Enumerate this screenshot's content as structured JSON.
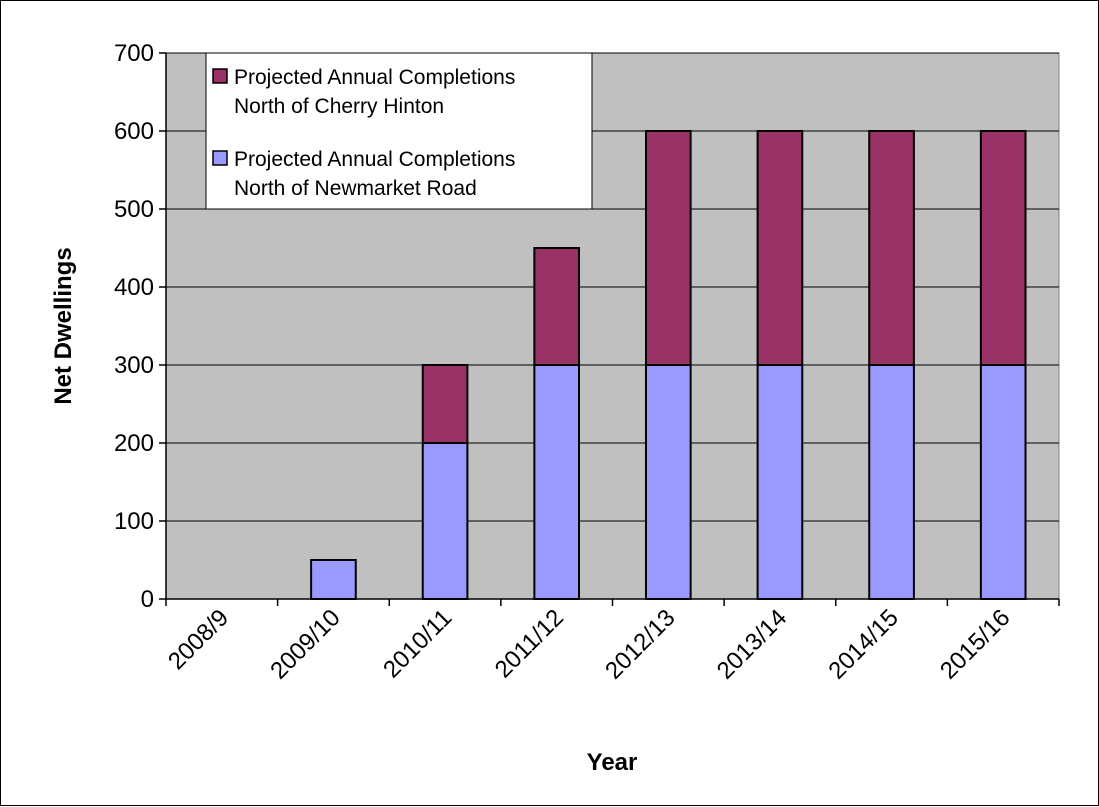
{
  "chart_data": {
    "type": "bar",
    "stacked": true,
    "title": "",
    "xlabel": "Year",
    "ylabel": "Net Dwellings",
    "ylim": [
      0,
      700
    ],
    "yticks": [
      0,
      100,
      200,
      300,
      400,
      500,
      600,
      700
    ],
    "grid": true,
    "legend_position": "top-left",
    "categories": [
      "2008/9",
      "2009/10",
      "2010/11",
      "2011/12",
      "2012/13",
      "2013/14",
      "2014/15",
      "2015/16"
    ],
    "series": [
      {
        "name": "Projected Annual Completions North of Newmarket Road",
        "legend_lines": [
          "Projected Annual Completions",
          "North of Newmarket Road"
        ],
        "values": [
          0,
          50,
          200,
          300,
          300,
          300,
          300,
          300
        ],
        "color": "#9999FF"
      },
      {
        "name": "Projected Annual Completions North of Cherry Hinton",
        "legend_lines": [
          "Projected Annual Completions",
          "North of Cherry Hinton"
        ],
        "values": [
          0,
          0,
          100,
          150,
          300,
          300,
          300,
          300
        ],
        "color": "#993366"
      }
    ],
    "plot_background": "#C0C0C0"
  }
}
